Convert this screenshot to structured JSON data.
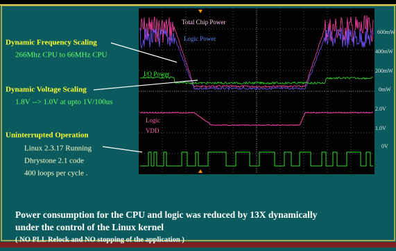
{
  "slide": {
    "callouts": [
      {
        "title": "Dynamic Frequency Scaling",
        "lines": [
          "266Mhz CPU  to 66MHz CPU"
        ]
      },
      {
        "title": "Dynamic Voltage Scaling",
        "lines": [
          "1.8V --> 1.0V at upto 1V/100us"
        ]
      },
      {
        "title": "Uninterrupted Operation",
        "lines": [
          "Linux 2.3.17  Running",
          "Dhrystone 2.1 code",
          "400  loops per cycle ."
        ]
      }
    ],
    "scope": {
      "trace_labels": [
        "Total Chip Power",
        "Logic Power",
        "I/O Power",
        "Logic",
        "VDD"
      ],
      "scale_labels": [
        "600mW",
        "400mW",
        "200mW",
        "0mW",
        "2.0V",
        "1.0V",
        "0V"
      ]
    },
    "summary": [
      "Power consumption for the CPU and logic was reduced by 13X dynamically",
      "under the control of the Linux  kernel",
      "( NO PLL Relock and NO stopping of the application )"
    ]
  }
}
